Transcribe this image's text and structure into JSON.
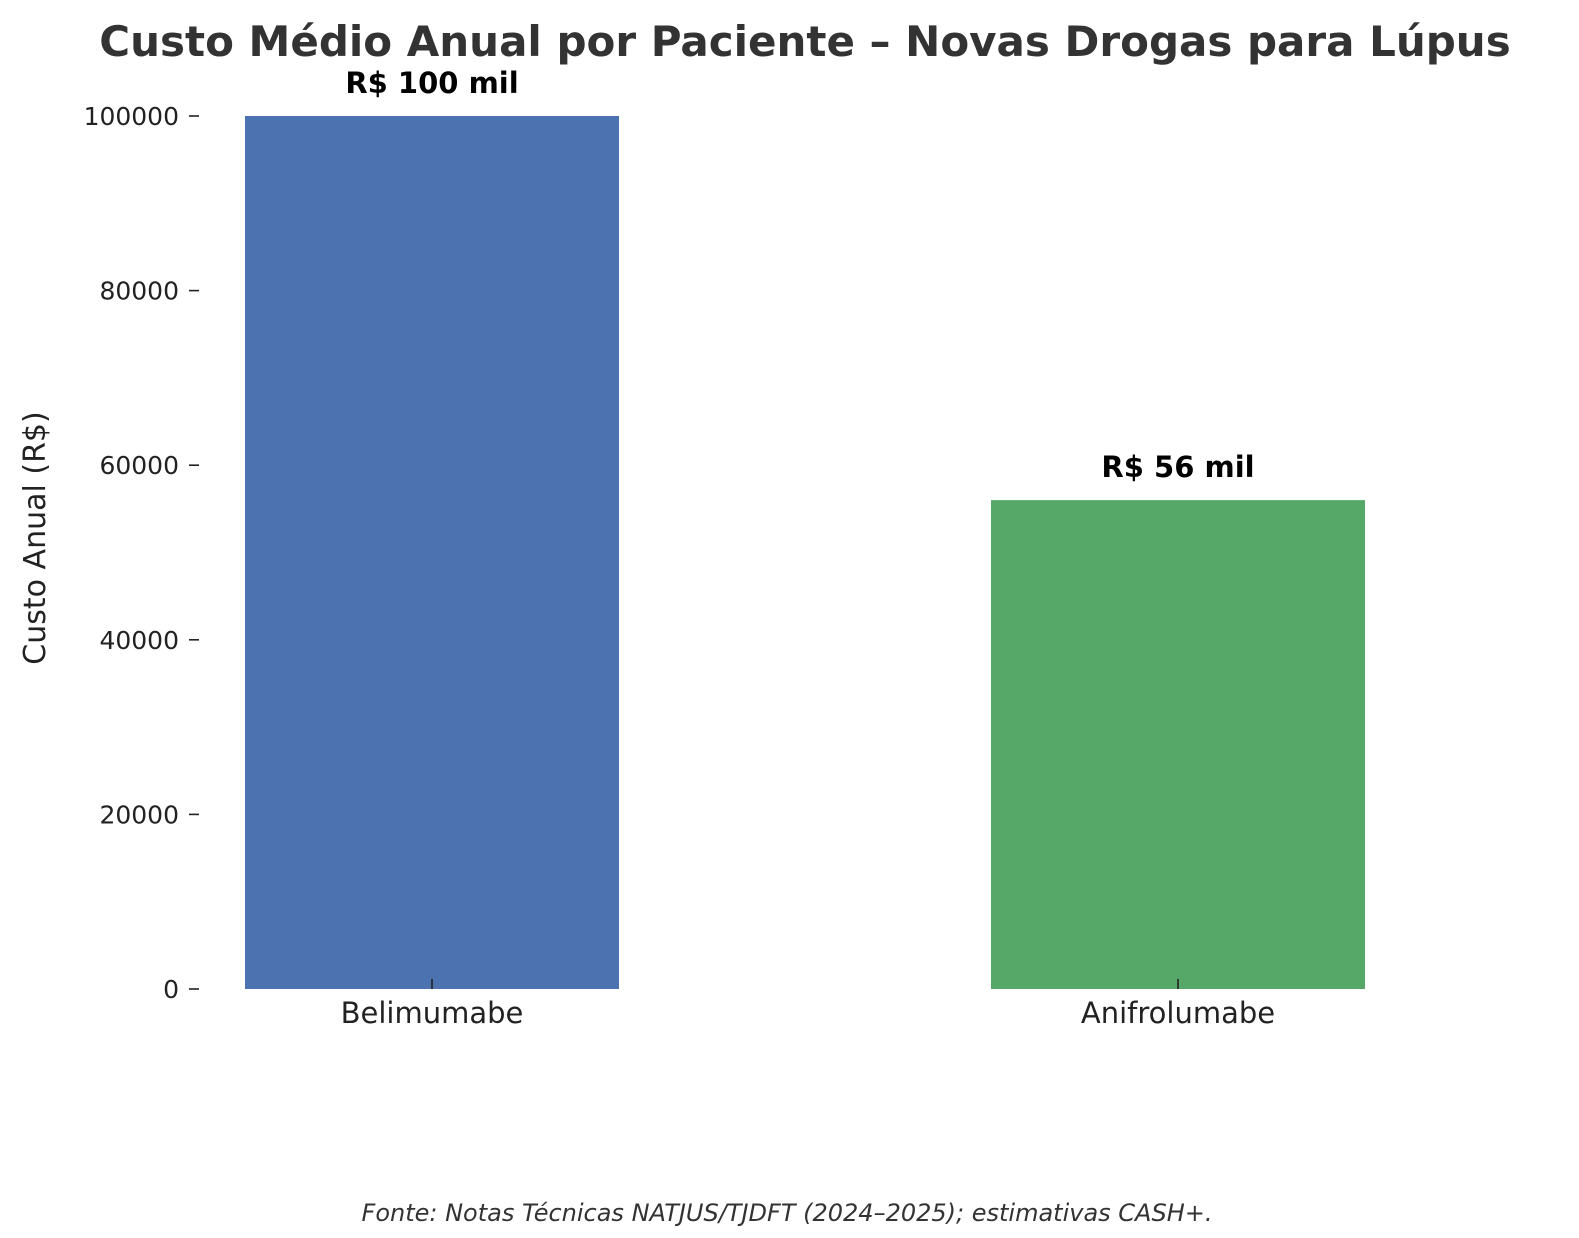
{
  "chart_data": {
    "type": "bar",
    "title": "Custo Médio Anual por Paciente – Novas Drogas para Lúpus",
    "xlabel": "",
    "ylabel": "Custo Anual (R$)",
    "categories": [
      "Belimumabe",
      "Anifrolumabe"
    ],
    "values": [
      100000,
      56000
    ],
    "data_labels": [
      "R$ 100 mil",
      "R$ 56 mil"
    ],
    "colors": [
      "#4c72b0",
      "#55a868"
    ],
    "ylim": [
      0,
      100000
    ],
    "yticks": [
      0,
      20000,
      40000,
      60000,
      80000,
      100000
    ],
    "ytick_labels": [
      "0",
      "20000",
      "40000",
      "60000",
      "80000",
      "100000"
    ],
    "grid": false,
    "source": "Fonte: Notas Técnicas NATJUS/TJDFT (2024–2025); estimativas CASH+."
  }
}
